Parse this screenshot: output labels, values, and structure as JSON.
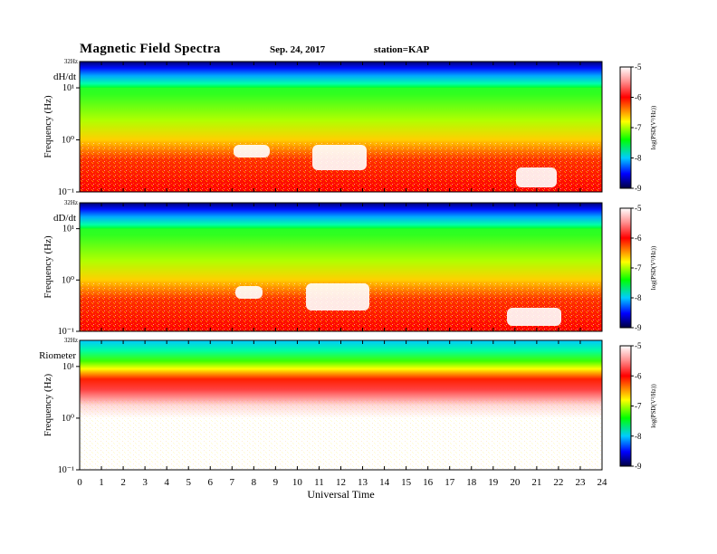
{
  "header": {
    "title": "Magnetic  Field  Spectra",
    "date": "Sep. 24, 2017",
    "station": "station=KAP"
  },
  "chart_data": [
    {
      "type": "heatmap",
      "panel_label": "dH/dt",
      "ylabel": "Frequency  (Hz)",
      "top_label": "32Hz",
      "ytick_labels": [
        "10¹",
        "10⁰",
        "10⁻¹"
      ],
      "ylim_hz": [
        0.1,
        32
      ],
      "colorbar_label": "log(PSD(V²/Hz))",
      "colorbar_ticks": [
        "-5",
        "-6",
        "-7",
        "-8",
        "-9"
      ],
      "zlim": [
        -9,
        -5
      ],
      "color_scale": [
        "#000060",
        "#0000ff",
        "#00c8ff",
        "#00ff00",
        "#ffff00",
        "#ff0000",
        "#ffffff"
      ]
    },
    {
      "type": "heatmap",
      "panel_label": "dD/dt",
      "ylabel": "Frequency  (Hz)",
      "top_label": "32Hz",
      "ytick_labels": [
        "10¹",
        "10⁰",
        "10⁻¹"
      ],
      "ylim_hz": [
        0.1,
        32
      ],
      "colorbar_label": "log(PSD(V²/Hz))",
      "colorbar_ticks": [
        "-5",
        "-6",
        "-7",
        "-8",
        "-9"
      ],
      "zlim": [
        -9,
        -5
      ],
      "color_scale": [
        "#000060",
        "#0000ff",
        "#00c8ff",
        "#00ff00",
        "#ffff00",
        "#ff0000",
        "#ffffff"
      ]
    },
    {
      "type": "heatmap",
      "panel_label": "Riometer",
      "ylabel": "Frequency  (Hz)",
      "top_label": "32Hz",
      "ytick_labels": [
        "10¹",
        "10⁰",
        "10⁻¹"
      ],
      "ylim_hz": [
        0.1,
        32
      ],
      "colorbar_label": "log(PSD(V²/Hz))",
      "colorbar_ticks": [
        "-5",
        "-6",
        "-7",
        "-8",
        "-9"
      ],
      "zlim": [
        -9,
        -5
      ],
      "color_scale": [
        "#000060",
        "#0000ff",
        "#00c8ff",
        "#00ff00",
        "#ffff00",
        "#ff0000",
        "#ffffff"
      ]
    }
  ],
  "x_axis": {
    "label": "Universal Time",
    "xlim": [
      0,
      24
    ],
    "ticks": [
      "0",
      "1",
      "2",
      "3",
      "4",
      "5",
      "6",
      "7",
      "8",
      "9",
      "10",
      "11",
      "12",
      "13",
      "14",
      "15",
      "16",
      "17",
      "18",
      "19",
      "20",
      "21",
      "22",
      "23",
      "24"
    ]
  }
}
